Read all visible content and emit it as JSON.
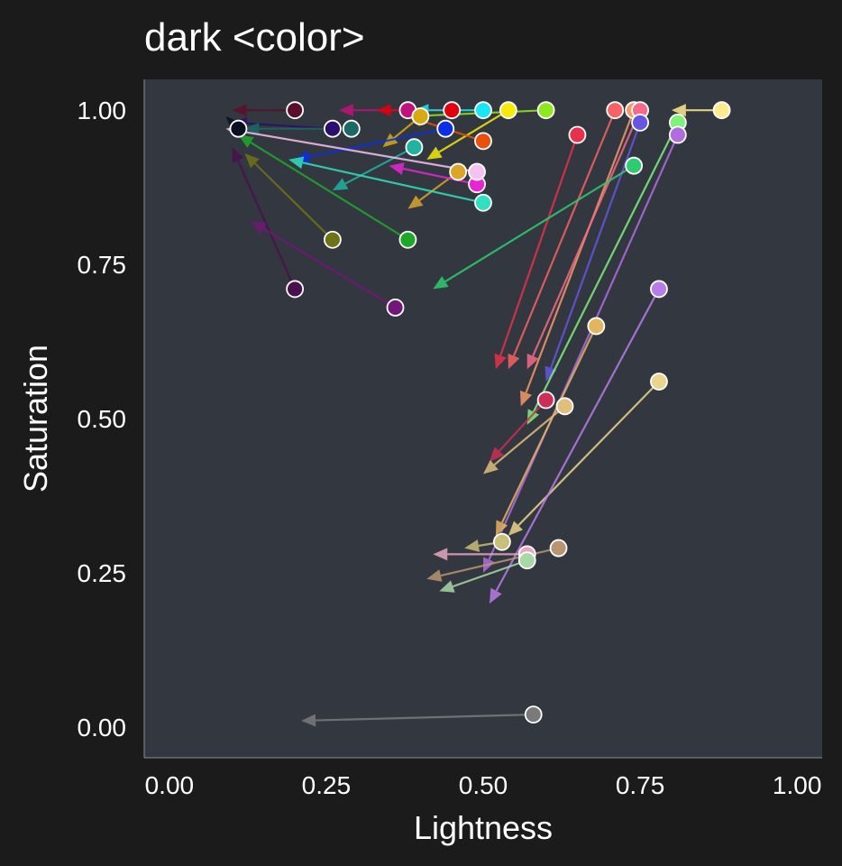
{
  "chart_data": {
    "type": "scatter",
    "title": "dark <color>",
    "xlabel": "Lightness",
    "ylabel": "Saturation",
    "xlim": [
      -0.04,
      1.04
    ],
    "ylim": [
      -0.05,
      1.05
    ],
    "xticks": [
      "0.00",
      "0.25",
      "0.50",
      "0.75",
      "1.00"
    ],
    "yticks": [
      "0.00",
      "0.25",
      "0.50",
      "0.75",
      "1.00"
    ],
    "grid": false,
    "legend": "none",
    "plot_background": "#333740",
    "page_background": "#1b1b1b",
    "point_edge_color": "#ffffff",
    "note": "Each point is a named color at (lightness, saturation); an arrow runs from it to its dark variant.",
    "points": [
      {
        "x": 0.2,
        "y": 1.0,
        "x2": 0.1,
        "y2": 1.0,
        "color": "#5a0f2a"
      },
      {
        "x": 0.38,
        "y": 1.0,
        "x2": 0.27,
        "y2": 1.0,
        "color": "#c0127a"
      },
      {
        "x": 0.45,
        "y": 1.0,
        "x2": 0.33,
        "y2": 1.0,
        "color": "#e0000e"
      },
      {
        "x": 0.5,
        "y": 1.0,
        "x2": 0.39,
        "y2": 1.0,
        "color": "#19e7f2"
      },
      {
        "x": 0.54,
        "y": 1.0,
        "x2": 0.41,
        "y2": 0.92,
        "color": "#f5ea0b"
      },
      {
        "x": 0.6,
        "y": 1.0,
        "x2": 0.38,
        "y2": 0.99,
        "color": "#8fe81e"
      },
      {
        "x": 0.88,
        "y": 1.0,
        "x2": 0.8,
        "y2": 1.0,
        "color": "#ffeb8a"
      },
      {
        "x": 0.71,
        "y": 1.0,
        "x2": 0.54,
        "y2": 0.58,
        "color": "#f76363"
      },
      {
        "x": 0.74,
        "y": 1.0,
        "x2": 0.56,
        "y2": 0.52,
        "color": "#f59a68"
      },
      {
        "x": 0.75,
        "y": 1.0,
        "x2": 0.57,
        "y2": 0.58,
        "color": "#f56a85"
      },
      {
        "x": 0.75,
        "y": 0.98,
        "x2": 0.6,
        "y2": 0.56,
        "color": "#6656e0"
      },
      {
        "x": 0.65,
        "y": 0.96,
        "x2": 0.52,
        "y2": 0.58,
        "color": "#e8304a"
      },
      {
        "x": 0.81,
        "y": 0.98,
        "x2": 0.57,
        "y2": 0.49,
        "color": "#7ff27c"
      },
      {
        "x": 0.81,
        "y": 0.96,
        "x2": 0.5,
        "y2": 0.25,
        "color": "#b06de0"
      },
      {
        "x": 0.74,
        "y": 0.91,
        "x2": 0.42,
        "y2": 0.71,
        "color": "#2ecc71"
      },
      {
        "x": 0.4,
        "y": 0.99,
        "x2": 0.34,
        "y2": 0.94,
        "color": "#d6ab12"
      },
      {
        "x": 0.44,
        "y": 0.97,
        "x2": 0.2,
        "y2": 0.92,
        "color": "#0b2ee8"
      },
      {
        "x": 0.5,
        "y": 0.95,
        "x2": 0.38,
        "y2": 0.99,
        "color": "#e8500b"
      },
      {
        "x": 0.26,
        "y": 0.97,
        "x2": 0.1,
        "y2": 0.98,
        "color": "#2a0e70"
      },
      {
        "x": 0.29,
        "y": 0.97,
        "x2": 0.12,
        "y2": 0.97,
        "color": "#1a6a63"
      },
      {
        "x": 0.39,
        "y": 0.94,
        "x2": 0.26,
        "y2": 0.87,
        "color": "#20b3a0"
      },
      {
        "x": 0.46,
        "y": 0.9,
        "x2": 0.38,
        "y2": 0.84,
        "color": "#d9a52b"
      },
      {
        "x": 0.49,
        "y": 0.88,
        "x2": 0.35,
        "y2": 0.91,
        "color": "#e824d6"
      },
      {
        "x": 0.49,
        "y": 0.9,
        "x2": 0.09,
        "y2": 0.97,
        "color": "#f4c1f0"
      },
      {
        "x": 0.5,
        "y": 0.85,
        "x2": 0.19,
        "y2": 0.92,
        "color": "#30e0c0"
      },
      {
        "x": 0.11,
        "y": 0.97,
        "x2": 0.09,
        "y2": 0.99,
        "color": "#0a1020"
      },
      {
        "x": 0.26,
        "y": 0.79,
        "x2": 0.12,
        "y2": 0.93,
        "color": "#6e7318"
      },
      {
        "x": 0.38,
        "y": 0.79,
        "x2": 0.11,
        "y2": 0.96,
        "color": "#1ea82a"
      },
      {
        "x": 0.2,
        "y": 0.71,
        "x2": 0.1,
        "y2": 0.94,
        "color": "#4a0f4e"
      },
      {
        "x": 0.36,
        "y": 0.68,
        "x2": 0.13,
        "y2": 0.82,
        "color": "#72167a"
      },
      {
        "x": 0.6,
        "y": 0.53,
        "x2": 0.51,
        "y2": 0.43,
        "color": "#cc2e58"
      },
      {
        "x": 0.63,
        "y": 0.52,
        "x2": 0.5,
        "y2": 0.41,
        "color": "#e0be7c"
      },
      {
        "x": 0.68,
        "y": 0.65,
        "x2": 0.52,
        "y2": 0.31,
        "color": "#e3b560"
      },
      {
        "x": 0.78,
        "y": 0.56,
        "x2": 0.54,
        "y2": 0.31,
        "color": "#ebd58c"
      },
      {
        "x": 0.78,
        "y": 0.71,
        "x2": 0.51,
        "y2": 0.2,
        "color": "#b87ce8"
      },
      {
        "x": 0.53,
        "y": 0.3,
        "x2": 0.47,
        "y2": 0.29,
        "color": "#c8c07a"
      },
      {
        "x": 0.57,
        "y": 0.28,
        "x2": 0.42,
        "y2": 0.28,
        "color": "#e8a8c0"
      },
      {
        "x": 0.62,
        "y": 0.29,
        "x2": 0.41,
        "y2": 0.24,
        "color": "#b89470"
      },
      {
        "x": 0.57,
        "y": 0.27,
        "x2": 0.43,
        "y2": 0.22,
        "color": "#a8d8a8"
      },
      {
        "x": 0.58,
        "y": 0.02,
        "x2": 0.21,
        "y2": 0.01,
        "color": "#7a7a7a"
      }
    ]
  }
}
